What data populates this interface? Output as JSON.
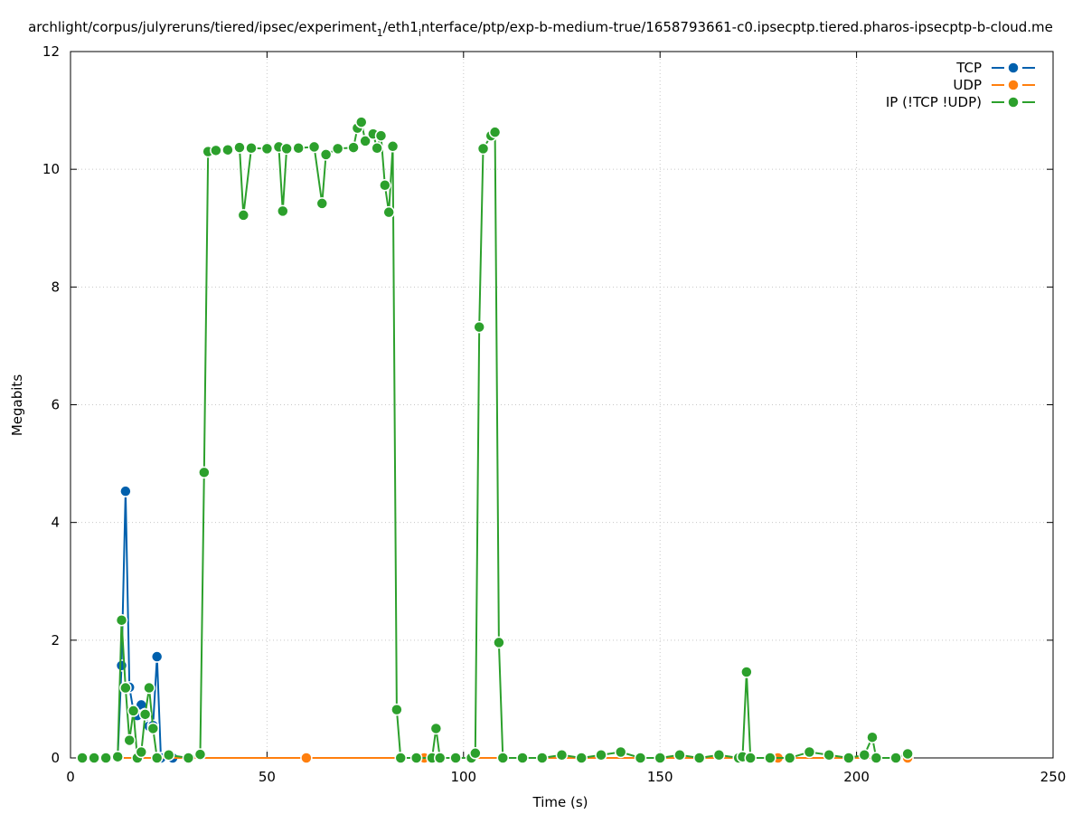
{
  "chart_data": {
    "type": "line",
    "title_parts": [
      "archlight/corpus/julyreruns/tiered/ipsec/experiment",
      "1",
      "/eth1",
      "i",
      "nterface/ptp/exp-b-medium-true/1658793661-c0.ipsecptp.tiered.pharos-ipsecptp-b-cloud.me"
    ],
    "xlabel": "Time (s)",
    "ylabel": "Megabits",
    "xlim": [
      0,
      250
    ],
    "ylim": [
      0,
      12
    ],
    "x_ticks": [
      0,
      50,
      100,
      150,
      200,
      250
    ],
    "y_ticks": [
      0,
      2,
      4,
      6,
      8,
      10,
      12
    ],
    "grid": true,
    "legend_position": "top-right",
    "series": [
      {
        "name": "TCP",
        "color": "#0060ad",
        "points": [
          [
            3,
            0
          ],
          [
            6,
            0
          ],
          [
            9,
            0
          ],
          [
            12,
            0
          ],
          [
            13,
            1.57
          ],
          [
            14,
            4.53
          ],
          [
            15,
            1.2
          ],
          [
            16,
            0.8
          ],
          [
            17,
            0.72
          ],
          [
            18,
            0.9
          ],
          [
            19,
            0.75
          ],
          [
            20,
            0.54
          ],
          [
            21,
            0.55
          ],
          [
            22,
            1.72
          ],
          [
            23,
            0
          ],
          [
            26,
            0
          ],
          [
            30,
            0
          ]
        ]
      },
      {
        "name": "UDP",
        "color": "#ff7f0e",
        "points": [
          [
            3,
            0
          ],
          [
            12,
            0
          ],
          [
            30,
            0
          ],
          [
            60,
            0
          ],
          [
            90,
            0
          ],
          [
            120,
            0
          ],
          [
            150,
            0
          ],
          [
            180,
            0
          ],
          [
            213,
            0
          ]
        ]
      },
      {
        "name": "IP (!TCP  !UDP)",
        "color": "#2ca02c",
        "points": [
          [
            3,
            0
          ],
          [
            6,
            0
          ],
          [
            9,
            0
          ],
          [
            12,
            0.02
          ],
          [
            13,
            2.34
          ],
          [
            14,
            1.19
          ],
          [
            15,
            0.3
          ],
          [
            16,
            0.8
          ],
          [
            17,
            0
          ],
          [
            18,
            0.1
          ],
          [
            19,
            0.74
          ],
          [
            20,
            1.19
          ],
          [
            21,
            0.5
          ],
          [
            22,
            0
          ],
          [
            25,
            0.05
          ],
          [
            30,
            0
          ],
          [
            33,
            0.06
          ],
          [
            34,
            4.85
          ],
          [
            35,
            10.3
          ],
          [
            37,
            10.32
          ],
          [
            40,
            10.33
          ],
          [
            43,
            10.37
          ],
          [
            44,
            9.22
          ],
          [
            46,
            10.36
          ],
          [
            50,
            10.35
          ],
          [
            53,
            10.38
          ],
          [
            54,
            9.29
          ],
          [
            55,
            10.35
          ],
          [
            58,
            10.36
          ],
          [
            62,
            10.38
          ],
          [
            64,
            9.42
          ],
          [
            65,
            10.25
          ],
          [
            68,
            10.35
          ],
          [
            72,
            10.37
          ],
          [
            73,
            10.7
          ],
          [
            74,
            10.8
          ],
          [
            75,
            10.48
          ],
          [
            77,
            10.6
          ],
          [
            78,
            10.36
          ],
          [
            79,
            10.57
          ],
          [
            80,
            9.73
          ],
          [
            81,
            9.27
          ],
          [
            82,
            10.39
          ],
          [
            83,
            0.82
          ],
          [
            84,
            0
          ],
          [
            88,
            0
          ],
          [
            92,
            0
          ],
          [
            93,
            0.5
          ],
          [
            94,
            0
          ],
          [
            98,
            0
          ],
          [
            102,
            0
          ],
          [
            103,
            0.08
          ],
          [
            104,
            7.32
          ],
          [
            105,
            10.35
          ],
          [
            107,
            10.57
          ],
          [
            108,
            10.63
          ],
          [
            109,
            1.96
          ],
          [
            110,
            0
          ],
          [
            115,
            0
          ],
          [
            120,
            0
          ],
          [
            125,
            0.05
          ],
          [
            130,
            0
          ],
          [
            135,
            0.05
          ],
          [
            140,
            0.1
          ],
          [
            145,
            0
          ],
          [
            150,
            0
          ],
          [
            155,
            0.05
          ],
          [
            160,
            0
          ],
          [
            165,
            0.05
          ],
          [
            170,
            0
          ],
          [
            171,
            0.02
          ],
          [
            172,
            1.46
          ],
          [
            173,
            0
          ],
          [
            178,
            0
          ],
          [
            183,
            0
          ],
          [
            188,
            0.1
          ],
          [
            193,
            0.05
          ],
          [
            198,
            0
          ],
          [
            202,
            0.05
          ],
          [
            204,
            0.35
          ],
          [
            205,
            0
          ],
          [
            210,
            0
          ],
          [
            213,
            0.07
          ]
        ]
      }
    ]
  }
}
